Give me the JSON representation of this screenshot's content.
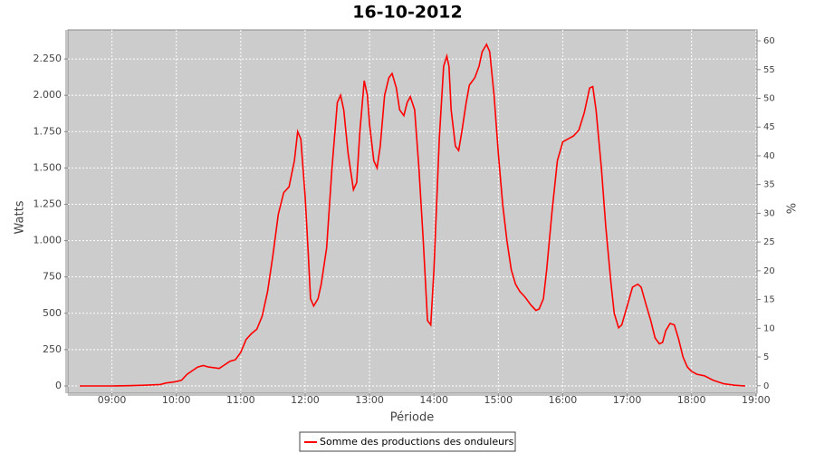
{
  "chart_data": {
    "type": "line",
    "title": "16-10-2012",
    "x_label": "Période",
    "y_label": "Watts",
    "y2_label": "%",
    "x": [
      "08:30",
      "08:45",
      "09:00",
      "09:15",
      "09:30",
      "09:45",
      "09:50",
      "10:00",
      "10:05",
      "10:10",
      "10:20",
      "10:25",
      "10:30",
      "10:40",
      "10:50",
      "10:55",
      "11:00",
      "11:05",
      "11:10",
      "11:15",
      "11:20",
      "11:25",
      "11:30",
      "11:35",
      "11:40",
      "11:45",
      "11:50",
      "11:53",
      "11:56",
      "12:00",
      "12:03",
      "12:05",
      "12:08",
      "12:12",
      "12:15",
      "12:20",
      "12:25",
      "12:30",
      "12:33",
      "12:36",
      "12:40",
      "12:45",
      "12:48",
      "12:51",
      "12:55",
      "12:58",
      "13:00",
      "13:04",
      "13:07",
      "13:10",
      "13:14",
      "13:18",
      "13:21",
      "13:25",
      "13:28",
      "13:32",
      "13:35",
      "13:38",
      "13:42",
      "13:46",
      "13:50",
      "13:54",
      "13:57",
      "14:00",
      "14:05",
      "14:09",
      "14:12",
      "14:14",
      "14:16",
      "14:20",
      "14:23",
      "14:26",
      "14:30",
      "14:33",
      "14:38",
      "14:42",
      "14:45",
      "14:49",
      "14:52",
      "14:56",
      "15:00",
      "15:04",
      "15:08",
      "15:12",
      "15:16",
      "15:20",
      "15:25",
      "15:30",
      "15:35",
      "15:38",
      "15:42",
      "15:45",
      "15:50",
      "15:55",
      "16:00",
      "16:05",
      "16:10",
      "16:15",
      "16:20",
      "16:25",
      "16:28",
      "16:31",
      "16:36",
      "16:40",
      "16:45",
      "16:48",
      "16:52",
      "16:55",
      "17:00",
      "17:05",
      "17:10",
      "17:13",
      "17:18",
      "17:22",
      "17:26",
      "17:30",
      "17:33",
      "17:36",
      "17:40",
      "17:44",
      "17:48",
      "17:52",
      "17:56",
      "18:00",
      "18:05",
      "18:12",
      "18:20",
      "18:30",
      "18:40",
      "18:50"
    ],
    "series": [
      {
        "name": "Somme des productions des onduleurs",
        "color": "#ff0000",
        "values": [
          0,
          0,
          0,
          2,
          5,
          10,
          20,
          30,
          40,
          80,
          130,
          140,
          130,
          120,
          170,
          180,
          230,
          320,
          360,
          390,
          480,
          650,
          900,
          1180,
          1330,
          1370,
          1550,
          1750,
          1700,
          1300,
          900,
          600,
          550,
          600,
          700,
          950,
          1500,
          1950,
          2000,
          1900,
          1600,
          1350,
          1400,
          1750,
          2100,
          2000,
          1800,
          1550,
          1500,
          1650,
          2000,
          2120,
          2150,
          2050,
          1900,
          1860,
          1950,
          1990,
          1900,
          1500,
          1000,
          450,
          420,
          800,
          1700,
          2200,
          2270,
          2200,
          1900,
          1650,
          1620,
          1750,
          1950,
          2070,
          2120,
          2200,
          2300,
          2350,
          2300,
          2000,
          1600,
          1250,
          1000,
          800,
          700,
          650,
          610,
          560,
          520,
          530,
          600,
          800,
          1200,
          1550,
          1680,
          1700,
          1720,
          1760,
          1880,
          2050,
          2060,
          1900,
          1500,
          1100,
          700,
          500,
          400,
          420,
          550,
          680,
          700,
          680,
          550,
          450,
          330,
          290,
          300,
          380,
          430,
          420,
          320,
          200,
          130,
          100,
          80,
          70,
          40,
          15,
          5,
          0
        ]
      }
    ],
    "xlim": [
      "08:19",
      "19:01"
    ],
    "xticks": [
      "09:00",
      "10:00",
      "11:00",
      "12:00",
      "13:00",
      "14:00",
      "15:00",
      "16:00",
      "17:00",
      "18:00",
      "19:00"
    ],
    "ylim": [
      -50,
      2450
    ],
    "yticks": [
      0,
      250,
      500,
      750,
      {
        "value": 1000,
        "label": "1.000"
      },
      {
        "value": 1250,
        "label": "1.250"
      },
      {
        "value": 1500,
        "label": "1.500"
      },
      {
        "value": 1750,
        "label": "1.750"
      },
      {
        "value": 2000,
        "label": "2.000"
      },
      {
        "value": 2250,
        "label": "2.250"
      }
    ],
    "y2lim": [
      -1.3,
      61.9
    ],
    "y2ticks": [
      0,
      5,
      10,
      15,
      20,
      25,
      30,
      35,
      40,
      45,
      50,
      55,
      60
    ],
    "grid": true,
    "legend": "bottom"
  }
}
